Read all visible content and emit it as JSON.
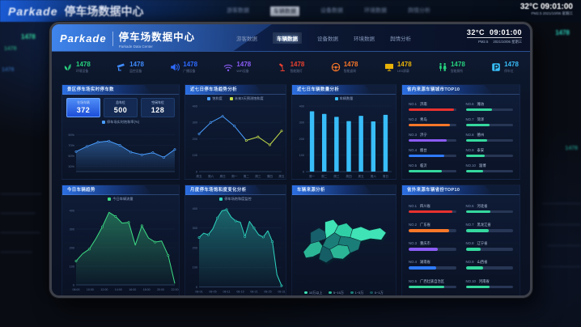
{
  "background": {
    "brand": "Parkade",
    "title": "停车场数据中心",
    "temp": "32°C",
    "time": "09:01:00",
    "meta": "PM2.5   2021/10/06 星期三",
    "stat": "1478"
  },
  "header": {
    "brand": "Parkade",
    "title": "停车场数据中心",
    "subtitle": "Parkade Data Center",
    "temp": "32°C",
    "time": "09:01:00",
    "pm": "PM2.5",
    "date": "2021/10/06 星期三",
    "nav": [
      {
        "label": "游客数据",
        "active": false
      },
      {
        "label": "车辆数据",
        "active": true
      },
      {
        "label": "设备数据",
        "active": false
      },
      {
        "label": "环境数据",
        "active": false
      },
      {
        "label": "舆情分析",
        "active": false
      }
    ]
  },
  "kpis": [
    {
      "icon": "leaf-icon",
      "value": "1478",
      "label": "环境设备",
      "color": "#27d17e"
    },
    {
      "icon": "camera-icon",
      "value": "1478",
      "label": "监控设备",
      "color": "#3f8cff"
    },
    {
      "icon": "speaker-icon",
      "value": "1478",
      "label": "广播设备",
      "color": "#2f6bff"
    },
    {
      "icon": "wifi-icon",
      "value": "1478",
      "label": "WiFi设备",
      "color": "#8b5cf6"
    },
    {
      "icon": "lamp-icon",
      "value": "1478",
      "label": "智能路灯",
      "color": "#e8402f"
    },
    {
      "icon": "steering-wheel-icon",
      "value": "1478",
      "label": "智能道闸",
      "color": "#f97728"
    },
    {
      "icon": "led-screen-icon",
      "value": "1478",
      "label": "LED屏幕",
      "color": "#e9b308"
    },
    {
      "icon": "restroom-icon",
      "value": "1478",
      "label": "智能厕所",
      "color": "#27d17e"
    },
    {
      "icon": "parking-icon",
      "value": "1478",
      "label": "停车位",
      "color": "#38bdf8"
    }
  ],
  "panels": {
    "realtime": {
      "title": "景区停车场实时停车数",
      "stats": [
        {
          "label": "在场车辆",
          "value": "372",
          "active": true
        },
        {
          "label": "总车位",
          "value": "500",
          "active": false
        },
        {
          "label": "空闲车位",
          "value": "128",
          "active": false
        }
      ]
    },
    "trend7": {
      "title": "近七日停车场趋势分析"
    },
    "count7": {
      "title": "近七日车辆数量分析"
    },
    "cityTop": {
      "title": "省内来源车辆城市TOP10",
      "items": [
        {
          "rank": "NO.1",
          "name": "济南",
          "pct": 95,
          "color": "#e8312f"
        },
        {
          "rank": "NO.2",
          "name": "青岛",
          "pct": 88,
          "color": "#f97728"
        },
        {
          "rank": "NO.3",
          "name": "济宁",
          "pct": 80,
          "color": "#8b5cf6"
        },
        {
          "rank": "NO.4",
          "name": "烟台",
          "pct": 76,
          "color": "#2f7bff"
        },
        {
          "rank": "NO.5",
          "name": "临沂",
          "pct": 70,
          "color": "#35d89e"
        },
        {
          "rank": "NO.6",
          "name": "潍坊",
          "pct": 56,
          "color": "#35d89e"
        },
        {
          "rank": "NO.7",
          "name": "菏泽",
          "pct": 50,
          "color": "#35d89e"
        },
        {
          "rank": "NO.8",
          "name": "德州",
          "pct": 45,
          "color": "#35d89e"
        },
        {
          "rank": "NO.9",
          "name": "泰安",
          "pct": 40,
          "color": "#35d89e"
        },
        {
          "rank": "NO.10",
          "name": "淄博",
          "pct": 36,
          "color": "#35d89e"
        }
      ]
    },
    "today": {
      "title": "今日车辆趋势"
    },
    "monthly": {
      "title": "月度停车场饱和度变化分析"
    },
    "map": {
      "title": "车辆来源分析",
      "legend": [
        {
          "label": "10万以上",
          "color": "#3fe3b5"
        },
        {
          "label": "5~10万",
          "color": "#2bb796"
        },
        {
          "label": "1~5万",
          "color": "#1b7d77"
        },
        {
          "label": "0~1万",
          "color": "#155058"
        }
      ]
    },
    "provinceTop": {
      "title": "省外来源车辆省份TOP10",
      "items": [
        {
          "rank": "NO.1",
          "name": "四川省",
          "pct": 93,
          "color": "#e8312f"
        },
        {
          "rank": "NO.2",
          "name": "广东省",
          "pct": 86,
          "color": "#f97728"
        },
        {
          "rank": "NO.3",
          "name": "重庆市",
          "pct": 62,
          "color": "#8b5cf6"
        },
        {
          "rank": "NO.4",
          "name": "湖南省",
          "pct": 58,
          "color": "#2f7bff"
        },
        {
          "rank": "NO.5",
          "name": "广西壮族自治区",
          "pct": 76,
          "color": "#35d89e"
        },
        {
          "rank": "NO.6",
          "name": "河北省",
          "pct": 52,
          "color": "#35d89e"
        },
        {
          "rank": "NO.7",
          "name": "黑龙江省",
          "pct": 48,
          "color": "#35d89e"
        },
        {
          "rank": "NO.8",
          "name": "辽宁省",
          "pct": 32,
          "color": "#35d89e"
        },
        {
          "rank": "NO.9",
          "name": "山西省",
          "pct": 36,
          "color": "#35d89e"
        },
        {
          "rank": "NO.10",
          "name": "河南省",
          "pct": 50,
          "color": "#35d89e"
        }
      ]
    }
  },
  "chart_data": [
    {
      "id": "saturation",
      "type": "area",
      "title": "景区停车场实时停车数",
      "ylim": [
        20,
        100
      ],
      "yticks": [
        {
          "v": 90,
          "l": "90%"
        },
        {
          "v": 70,
          "l": "70%"
        },
        {
          "v": 50,
          "l": "50%"
        },
        {
          "v": 30,
          "l": "30%"
        }
      ],
      "categories": [],
      "series": [
        {
          "name": "停车场实时饱和率(%)",
          "color": "#4a9eff",
          "values": [
            58,
            68,
            76,
            78,
            70,
            57,
            52,
            56,
            47,
            62
          ]
        }
      ]
    },
    {
      "id": "trend7",
      "type": "line",
      "title": "近七日停车场趋势分析",
      "ylim": [
        0,
        400
      ],
      "yticks": [
        {
          "v": 400,
          "l": "400"
        },
        {
          "v": 300,
          "l": "300"
        },
        {
          "v": 200,
          "l": "200"
        },
        {
          "v": 100,
          "l": "100"
        },
        {
          "v": 0,
          "l": "0"
        }
      ],
      "categories": [
        "周五",
        "周六",
        "周日",
        "周一",
        "周二",
        "周三",
        "周四",
        "周五"
      ],
      "series": [
        {
          "name": "饱和度",
          "color": "#4a9eff",
          "values": [
            230,
            300,
            338,
            278,
            190,
            null,
            null,
            null
          ]
        },
        {
          "name": "未来3天预测饱和度",
          "color": "#c6de4a",
          "values": [
            null,
            null,
            null,
            null,
            190,
            212,
            163,
            248
          ]
        }
      ]
    },
    {
      "id": "count7",
      "type": "bar",
      "title": "近七日车辆数量分析",
      "ylim": [
        0,
        400
      ],
      "yticks": [
        {
          "v": 400,
          "l": "400"
        },
        {
          "v": 300,
          "l": "300"
        },
        {
          "v": 200,
          "l": "200"
        },
        {
          "v": 100,
          "l": "100"
        },
        {
          "v": 0,
          "l": "0"
        }
      ],
      "categories": [
        "周一",
        "周二",
        "周三",
        "周四",
        "周五",
        "周六",
        "周日"
      ],
      "series": [
        {
          "name": "车辆数量",
          "color": "#38bdf8",
          "values": [
            368,
            352,
            334,
            308,
            340,
            306,
            346
          ]
        }
      ]
    },
    {
      "id": "today",
      "type": "area",
      "title": "今日车辆趋势",
      "ylim": [
        0,
        400
      ],
      "yticks": [
        {
          "v": 400,
          "l": "400"
        },
        {
          "v": 300,
          "l": "300"
        },
        {
          "v": 200,
          "l": "200"
        },
        {
          "v": 100,
          "l": "100"
        },
        {
          "v": 0,
          "l": "0"
        }
      ],
      "categories": [
        "08:00",
        "10:00",
        "12:00",
        "14:00",
        "16:00",
        "18:00",
        "20:00",
        "22:00"
      ],
      "series": [
        {
          "name": "今日车辆流量",
          "color": "#3ddc84",
          "values": [
            128,
            168,
            192,
            248,
            312,
            390,
            368,
            332,
            336,
            214,
            318,
            252,
            230,
            236,
            158,
            8
          ]
        }
      ]
    },
    {
      "id": "monthly",
      "type": "area",
      "title": "月度停车场饱和度变化分析",
      "ylim": [
        0,
        400
      ],
      "yticks": [
        {
          "v": 400,
          "l": "400"
        },
        {
          "v": 300,
          "l": "300"
        },
        {
          "v": 200,
          "l": "200"
        },
        {
          "v": 100,
          "l": "100"
        },
        {
          "v": 0,
          "l": "0"
        }
      ],
      "categories": [
        "08-01",
        "08-05",
        "08-11",
        "08-15",
        "08-21",
        "08-25",
        "08-31"
      ],
      "series": [
        {
          "name": "停车场饱和度监控",
          "color": "#2dd4bf",
          "values": [
            252,
            274,
            266,
            296,
            352,
            388,
            394,
            356,
            336,
            330,
            256,
            334,
            300,
            266,
            254,
            286,
            230,
            62,
            6
          ]
        }
      ]
    }
  ]
}
